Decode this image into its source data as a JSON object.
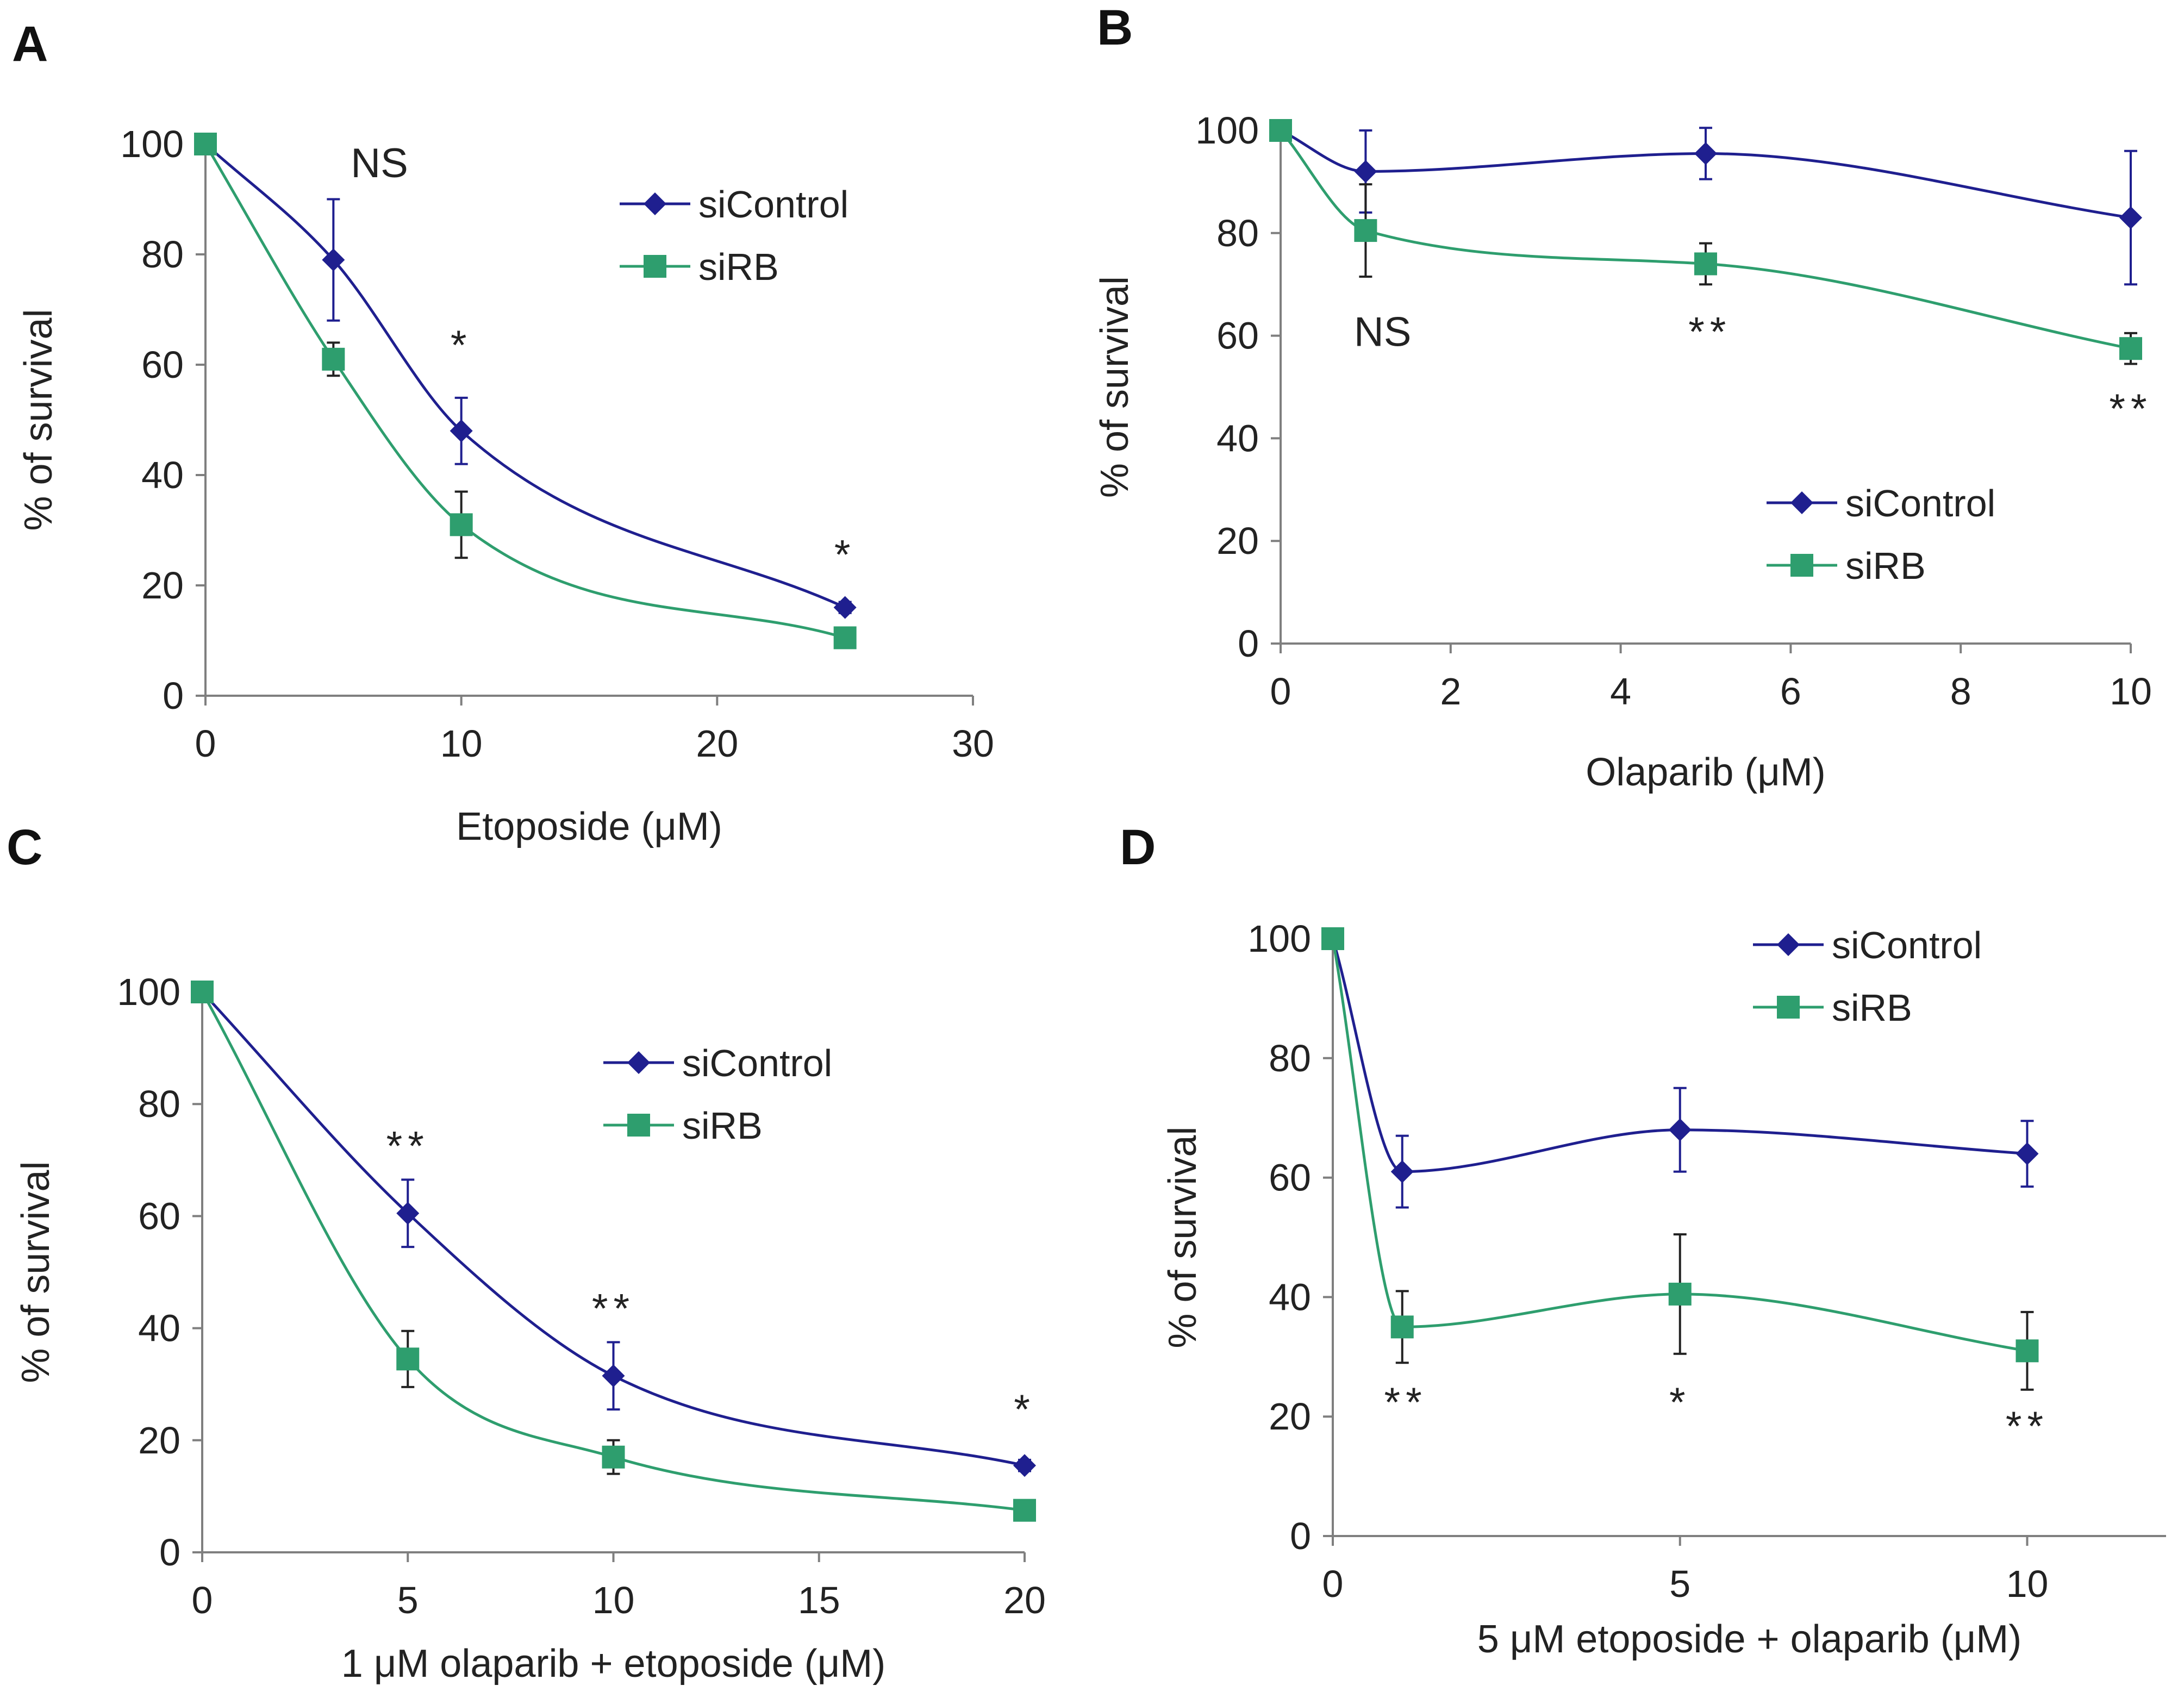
{
  "colors": {
    "siControl": "#1f1f8f",
    "siRB": "#2e9e6e",
    "axis": "#7f7f7f",
    "text": "#222222"
  },
  "chart_data": [
    {
      "panel": "A",
      "type": "line",
      "xlabel": "Etoposide (μM)",
      "ylabel": "% of survival",
      "xlim": [
        0,
        30
      ],
      "ylim": [
        0,
        100
      ],
      "xticks": [
        0,
        10,
        20,
        30
      ],
      "yticks": [
        0,
        20,
        40,
        60,
        80,
        100
      ],
      "legend_position": "top-right",
      "series": [
        {
          "name": "siControl",
          "marker": "diamond",
          "x": [
            0,
            5,
            10,
            25
          ],
          "y": [
            100,
            79,
            48,
            16
          ],
          "err": [
            0,
            11,
            6,
            1
          ]
        },
        {
          "name": "siRB",
          "marker": "square",
          "x": [
            0,
            5,
            10,
            25
          ],
          "y": [
            100,
            61,
            31,
            10.5
          ],
          "err": [
            0,
            3,
            6,
            1
          ]
        }
      ],
      "annotations": [
        {
          "text": "NS",
          "x": 6.8,
          "y": 94
        },
        {
          "text": "*",
          "x": 10,
          "y": 61
        },
        {
          "text": "*",
          "x": 25,
          "y": 23
        }
      ]
    },
    {
      "panel": "B",
      "type": "line",
      "xlabel": "Olaparib (μM)",
      "ylabel": "% of survival",
      "xlim": [
        0,
        10
      ],
      "ylim": [
        0,
        100
      ],
      "xticks": [
        0,
        2,
        4,
        6,
        8,
        10
      ],
      "yticks": [
        0,
        20,
        40,
        60,
        80,
        100
      ],
      "legend_position": "bottom-right",
      "series": [
        {
          "name": "siControl",
          "marker": "diamond",
          "x": [
            0,
            1,
            5,
            10
          ],
          "y": [
            100,
            92,
            95.5,
            83
          ],
          "err": [
            0,
            8,
            5,
            13
          ]
        },
        {
          "name": "siRB",
          "marker": "square",
          "x": [
            0,
            1,
            5,
            10
          ],
          "y": [
            100,
            80.5,
            74,
            57.5
          ],
          "err": [
            0,
            9,
            4,
            3
          ]
        }
      ],
      "annotations": [
        {
          "text": "NS",
          "x": 1.2,
          "y": 58
        },
        {
          "text": "**",
          "x": 5.05,
          "y": 58
        },
        {
          "text": "**",
          "x": 10,
          "y": 43
        }
      ]
    },
    {
      "panel": "C",
      "type": "line",
      "xlabel": "1 μM olaparib + etoposide (μM)",
      "ylabel": "% of survival",
      "xlim": [
        0,
        20
      ],
      "ylim": [
        0,
        100
      ],
      "xticks": [
        0,
        5,
        10,
        15,
        20
      ],
      "yticks": [
        0,
        20,
        40,
        60,
        80,
        100
      ],
      "legend_position": "top-right",
      "series": [
        {
          "name": "siControl",
          "marker": "diamond",
          "x": [
            0,
            5,
            10,
            20
          ],
          "y": [
            100,
            60.5,
            31.5,
            15.5
          ],
          "err": [
            0,
            6,
            6,
            1
          ]
        },
        {
          "name": "siRB",
          "marker": "square",
          "x": [
            0,
            5,
            10,
            20
          ],
          "y": [
            100,
            34.5,
            17,
            7.5
          ],
          "err": [
            0,
            5,
            3,
            1
          ]
        }
      ],
      "annotations": [
        {
          "text": "**",
          "x": 5,
          "y": 70
        },
        {
          "text": "**",
          "x": 10,
          "y": 41
        },
        {
          "text": "*",
          "x": 20,
          "y": 23
        }
      ]
    },
    {
      "panel": "D",
      "type": "line",
      "xlabel": "5 μM etoposide + olaparib (μM)",
      "ylabel": "% of survival",
      "xlim": [
        0,
        12
      ],
      "ylim": [
        0,
        100
      ],
      "xticks": [
        0,
        5,
        10
      ],
      "yticks": [
        0,
        20,
        40,
        60,
        80,
        100
      ],
      "legend_position": "top-right",
      "series": [
        {
          "name": "siControl",
          "marker": "diamond",
          "x": [
            0,
            1,
            5,
            10
          ],
          "y": [
            100,
            61,
            68,
            64
          ],
          "err": [
            0,
            6,
            7,
            5.5
          ]
        },
        {
          "name": "siRB",
          "marker": "square",
          "x": [
            0,
            1,
            5,
            10
          ],
          "y": [
            100,
            35,
            40.5,
            31
          ],
          "err": [
            0,
            6,
            10,
            6.5
          ]
        }
      ],
      "annotations": [
        {
          "text": "**",
          "x": 1.05,
          "y": 20
        },
        {
          "text": "*",
          "x": 5,
          "y": 20
        },
        {
          "text": "**",
          "x": 10,
          "y": 16
        }
      ]
    }
  ]
}
